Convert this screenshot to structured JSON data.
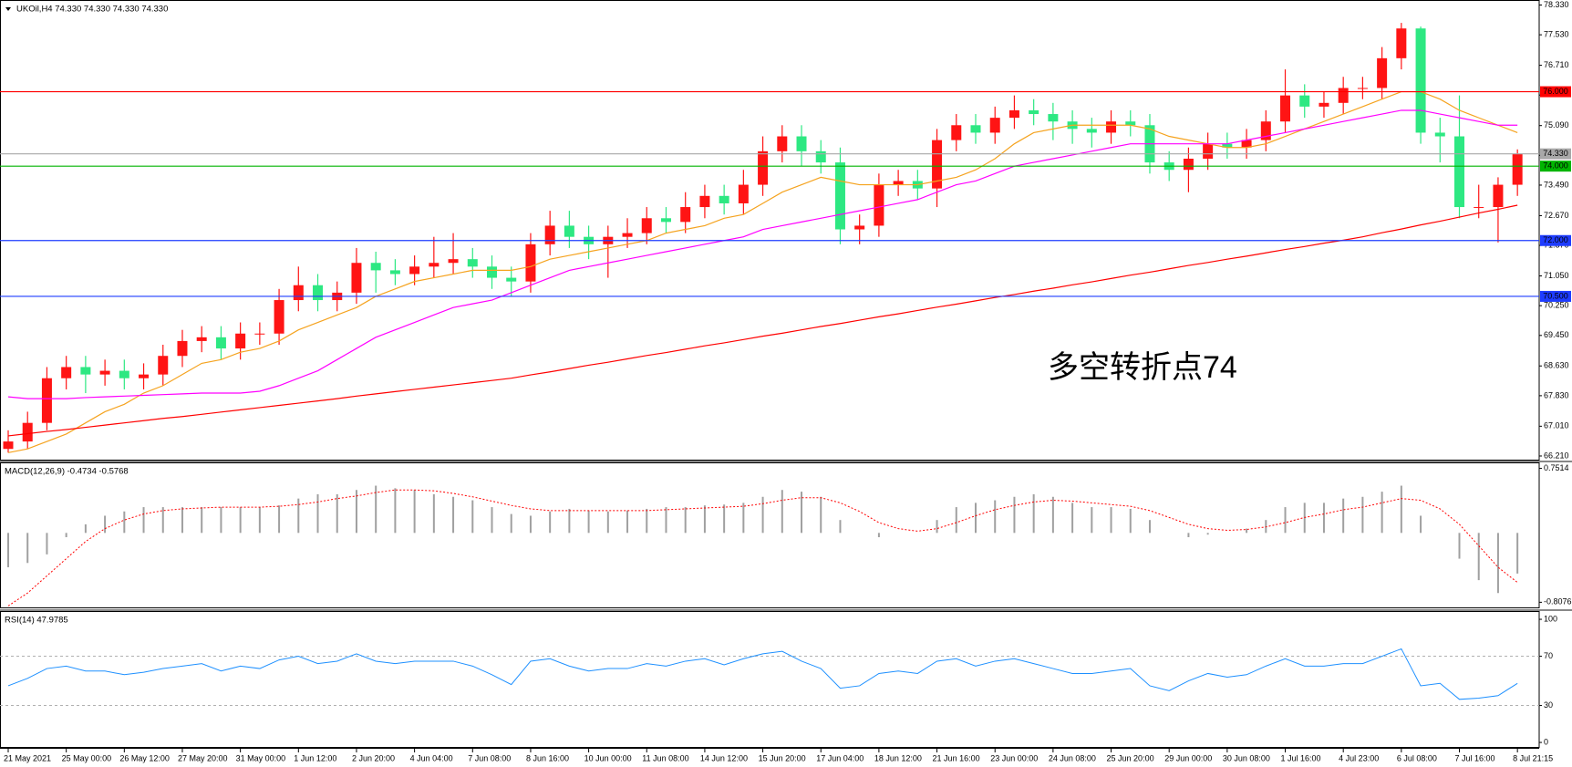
{
  "chart_data": [
    {
      "type": "candlestick",
      "title": "UKOil,H4  74.330 74.330 74.330 74.330",
      "categories": [
        "21 May 2021",
        null,
        null,
        "25 May 00:00",
        null,
        null,
        "26 May 12:00",
        null,
        null,
        "27 May 20:00",
        null,
        null,
        "31 May 00:00",
        null,
        null,
        "1 Jun 12:00",
        null,
        null,
        "2 Jun 20:00",
        null,
        null,
        "4 Jun 04:00",
        null,
        null,
        "7 Jun 08:00",
        null,
        null,
        "8 Jun 16:00",
        null,
        null,
        "10 Jun 00:00",
        null,
        null,
        "11 Jun 08:00",
        null,
        null,
        "14 Jun 12:00",
        null,
        null,
        "15 Jun 20:00",
        null,
        null,
        "17 Jun 04:00",
        null,
        null,
        "18 Jun 12:00",
        null,
        null,
        "21 Jun 16:00",
        null,
        null,
        "23 Jun 00:00",
        null,
        null,
        "24 Jun 08:00",
        null,
        null,
        "25 Jun 20:00",
        null,
        null,
        "29 Jun 00:00",
        null,
        null,
        "30 Jun 08:00",
        null,
        null,
        "1 Jul 16:00",
        null,
        null,
        "4 Jul 23:00",
        null,
        null,
        "6 Jul 08:00",
        null,
        null,
        "7 Jul 16:00",
        null,
        null,
        "8 Jul 21:15"
      ],
      "open": [
        66.4,
        66.6,
        67.1,
        68.3,
        68.6,
        68.4,
        68.5,
        68.3,
        68.4,
        68.9,
        69.3,
        69.4,
        69.1,
        69.5,
        69.5,
        70.4,
        70.8,
        70.4,
        70.6,
        71.4,
        71.2,
        71.1,
        71.3,
        71.4,
        71.5,
        71.3,
        71.0,
        70.9,
        71.9,
        72.4,
        72.1,
        71.9,
        72.1,
        72.2,
        72.6,
        72.5,
        72.9,
        73.2,
        73.0,
        73.5,
        74.4,
        74.8,
        74.4,
        74.1,
        72.3,
        72.4,
        73.5,
        73.6,
        73.4,
        74.7,
        75.1,
        74.9,
        75.3,
        75.5,
        75.4,
        75.2,
        75.0,
        74.9,
        75.2,
        75.1,
        74.1,
        73.9,
        74.2,
        74.6,
        74.5,
        74.7,
        75.2,
        75.9,
        75.6,
        75.7,
        76.1,
        76.1,
        76.9,
        77.7,
        74.9,
        74.8,
        72.9,
        72.9,
        73.5
      ],
      "high": [
        66.9,
        67.4,
        68.6,
        68.9,
        68.9,
        68.8,
        68.8,
        68.7,
        69.2,
        69.6,
        69.7,
        69.7,
        69.8,
        69.8,
        70.7,
        71.3,
        71.1,
        70.9,
        71.8,
        71.7,
        71.5,
        71.6,
        72.1,
        72.2,
        71.8,
        71.6,
        71.3,
        72.2,
        72.8,
        72.8,
        72.4,
        72.4,
        72.6,
        72.9,
        72.9,
        73.3,
        73.5,
        73.5,
        73.9,
        74.8,
        75.1,
        75.1,
        74.7,
        74.5,
        72.7,
        73.8,
        73.9,
        73.9,
        75.0,
        75.4,
        75.4,
        75.6,
        75.9,
        75.8,
        75.7,
        75.5,
        75.3,
        75.5,
        75.5,
        75.4,
        74.4,
        74.5,
        74.9,
        74.9,
        75.0,
        75.5,
        76.6,
        76.2,
        76.0,
        76.4,
        76.4,
        77.2,
        77.85,
        77.75,
        75.3,
        75.9,
        73.5,
        73.7,
        74.45
      ],
      "low": [
        66.3,
        66.4,
        66.9,
        68.0,
        67.9,
        68.1,
        68.0,
        68.0,
        68.1,
        68.6,
        69.0,
        68.8,
        68.8,
        69.2,
        69.2,
        70.1,
        70.1,
        70.1,
        70.3,
        70.6,
        70.8,
        70.8,
        71.0,
        71.1,
        71.0,
        70.7,
        70.5,
        70.6,
        71.6,
        71.8,
        71.5,
        71.0,
        71.8,
        71.9,
        72.2,
        72.2,
        72.6,
        72.7,
        72.7,
        73.2,
        74.1,
        74.0,
        73.8,
        71.9,
        71.9,
        72.1,
        73.2,
        73.1,
        72.9,
        74.4,
        74.6,
        74.6,
        75.0,
        75.1,
        74.7,
        74.6,
        74.5,
        74.6,
        74.8,
        73.8,
        73.6,
        73.3,
        73.9,
        74.2,
        74.2,
        74.4,
        74.9,
        75.3,
        75.3,
        75.4,
        75.8,
        75.8,
        76.6,
        74.6,
        74.1,
        72.6,
        72.6,
        71.95,
        73.2
      ],
      "close": [
        66.6,
        67.1,
        68.3,
        68.6,
        68.4,
        68.5,
        68.3,
        68.4,
        68.9,
        69.3,
        69.4,
        69.1,
        69.5,
        69.5,
        70.4,
        70.8,
        70.4,
        70.6,
        71.4,
        71.2,
        71.1,
        71.3,
        71.4,
        71.5,
        71.3,
        71.0,
        70.9,
        71.9,
        72.4,
        72.1,
        71.9,
        72.1,
        72.2,
        72.6,
        72.5,
        72.9,
        73.2,
        73.0,
        73.5,
        74.4,
        74.8,
        74.4,
        74.1,
        72.3,
        72.4,
        73.5,
        73.6,
        73.4,
        74.7,
        75.1,
        74.9,
        75.3,
        75.5,
        75.4,
        75.2,
        75.0,
        74.9,
        75.2,
        75.1,
        74.1,
        73.9,
        74.2,
        74.6,
        74.5,
        74.7,
        75.2,
        75.9,
        75.6,
        75.7,
        76.1,
        76.1,
        76.9,
        77.7,
        74.9,
        74.8,
        72.9,
        72.9,
        73.5,
        74.33
      ],
      "up_color": "#ff1414",
      "down_color": "#2de882",
      "series": [
        {
          "color": "#f5a31f",
          "values": [
            66.3,
            66.4,
            66.6,
            66.8,
            67.1,
            67.4,
            67.6,
            67.9,
            68.1,
            68.4,
            68.7,
            68.8,
            69.0,
            69.1,
            69.3,
            69.6,
            69.8,
            70.0,
            70.2,
            70.5,
            70.7,
            70.9,
            71.0,
            71.1,
            71.2,
            71.2,
            71.2,
            71.3,
            71.5,
            71.6,
            71.7,
            71.8,
            71.9,
            72.0,
            72.2,
            72.3,
            72.4,
            72.6,
            72.7,
            73.0,
            73.3,
            73.5,
            73.7,
            73.6,
            73.5,
            73.5,
            73.5,
            73.5,
            73.6,
            73.7,
            73.9,
            74.2,
            74.6,
            74.9,
            75.0,
            75.1,
            75.1,
            75.1,
            75.1,
            75.0,
            74.8,
            74.7,
            74.6,
            74.5,
            74.5,
            74.6,
            74.8,
            75.0,
            75.2,
            75.4,
            75.6,
            75.8,
            76.0,
            76.0,
            75.8,
            75.5,
            75.3,
            75.1,
            74.9
          ]
        },
        {
          "color": "#ff00ff",
          "values": [
            67.8,
            67.75,
            67.75,
            67.75,
            67.78,
            67.8,
            67.82,
            67.84,
            67.86,
            67.88,
            67.9,
            67.9,
            67.9,
            67.95,
            68.1,
            68.3,
            68.5,
            68.8,
            69.1,
            69.4,
            69.6,
            69.8,
            70.0,
            70.2,
            70.3,
            70.4,
            70.6,
            70.8,
            71.0,
            71.2,
            71.3,
            71.4,
            71.5,
            71.6,
            71.7,
            71.8,
            71.9,
            72.0,
            72.1,
            72.3,
            72.4,
            72.5,
            72.6,
            72.7,
            72.8,
            72.9,
            73.0,
            73.1,
            73.3,
            73.5,
            73.6,
            73.8,
            74.0,
            74.1,
            74.2,
            74.3,
            74.4,
            74.5,
            74.6,
            74.6,
            74.6,
            74.6,
            74.6,
            74.6,
            74.7,
            74.8,
            74.9,
            75.0,
            75.1,
            75.2,
            75.3,
            75.4,
            75.5,
            75.5,
            75.4,
            75.3,
            75.2,
            75.1,
            75.1
          ]
        },
        {
          "color": "#ff0000",
          "values": [
            66.75,
            66.81,
            66.87,
            66.92,
            66.98,
            67.04,
            67.1,
            67.16,
            67.22,
            67.27,
            67.33,
            67.39,
            67.45,
            67.51,
            67.57,
            67.63,
            67.69,
            67.75,
            67.82,
            67.88,
            67.94,
            68.0,
            68.06,
            68.12,
            68.18,
            68.24,
            68.3,
            68.39,
            68.47,
            68.56,
            68.65,
            68.73,
            68.82,
            68.91,
            68.99,
            69.08,
            69.17,
            69.25,
            69.34,
            69.43,
            69.51,
            69.6,
            69.69,
            69.77,
            69.86,
            69.95,
            70.03,
            70.12,
            70.21,
            70.29,
            70.38,
            70.47,
            70.55,
            70.64,
            70.72,
            70.81,
            70.89,
            70.98,
            71.07,
            71.15,
            71.24,
            71.33,
            71.41,
            71.5,
            71.58,
            71.67,
            71.76,
            71.84,
            71.93,
            72.01,
            72.1,
            72.21,
            72.31,
            72.42,
            72.52,
            72.63,
            72.74,
            72.84,
            72.95
          ]
        }
      ],
      "hlines": [
        {
          "value": 76,
          "label": "76.000",
          "color": "#ff0000",
          "label_color": "#ffffff"
        },
        {
          "value": 74.33,
          "label": "74.330",
          "color": "#a8a8a8",
          "label_color": "#000000"
        },
        {
          "value": 74,
          "label": "74.000",
          "color": "#00b400",
          "label_color": "#ffffff"
        },
        {
          "value": 72,
          "label": "72.000",
          "color": "#1e3cff",
          "label_color": "#ffffff"
        },
        {
          "value": 70.5,
          "label": "70.500",
          "color": "#1e3cff",
          "label_color": "#ffffff"
        }
      ],
      "annotation": {
        "text": "多空转折点74",
        "color": "#e8332a"
      },
      "ylim": [
        66.087,
        78.465
      ],
      "yticks": [
        {
          "value": 78.33,
          "label": "78.330"
        },
        {
          "value": 77.53,
          "label": "77.530"
        },
        {
          "value": 76.71,
          "label": "76.710"
        },
        {
          "value": 75.91,
          "label": "75.910"
        },
        {
          "value": 75.09,
          "label": "75.090"
        },
        {
          "value": 74.29,
          "label": "74.290"
        },
        {
          "value": 73.49,
          "label": "73.490"
        },
        {
          "value": 72.67,
          "label": "72.670"
        },
        {
          "value": 71.87,
          "label": "71.870"
        },
        {
          "value": 71.05,
          "label": "71.050"
        },
        {
          "value": 70.25,
          "label": "70.250"
        },
        {
          "value": 69.45,
          "label": "69.450"
        },
        {
          "value": 68.63,
          "label": "68.630"
        },
        {
          "value": 67.83,
          "label": "67.830"
        },
        {
          "value": 67.01,
          "label": "67.010"
        },
        {
          "value": 66.21,
          "label": "66.210"
        }
      ]
    },
    {
      "type": "macd",
      "title": "MACD(12,26,9) -0.4734 -0.5768",
      "values": [
        -0.4,
        -0.35,
        -0.25,
        -0.05,
        0.1,
        0.2,
        0.25,
        0.3,
        0.3,
        0.3,
        0.3,
        0.3,
        0.3,
        0.3,
        0.32,
        0.4,
        0.45,
        0.45,
        0.5,
        0.55,
        0.52,
        0.5,
        0.45,
        0.42,
        0.38,
        0.3,
        0.22,
        0.2,
        0.25,
        0.28,
        0.26,
        0.25,
        0.26,
        0.28,
        0.3,
        0.3,
        0.32,
        0.33,
        0.35,
        0.42,
        0.5,
        0.48,
        0.42,
        0.15,
        0.0,
        -0.05,
        0.0,
        0.0,
        0.15,
        0.3,
        0.35,
        0.38,
        0.42,
        0.45,
        0.42,
        0.35,
        0.3,
        0.3,
        0.28,
        0.15,
        0.0,
        -0.05,
        -0.02,
        0.0,
        0.05,
        0.15,
        0.3,
        0.35,
        0.35,
        0.4,
        0.42,
        0.48,
        0.55,
        0.2,
        0.0,
        -0.3,
        -0.55,
        -0.7,
        -0.4734
      ],
      "color": "#a0a0a0",
      "signal_values": [
        -0.85,
        -0.7,
        -0.5,
        -0.3,
        -0.1,
        0.05,
        0.15,
        0.22,
        0.26,
        0.28,
        0.29,
        0.3,
        0.3,
        0.3,
        0.31,
        0.33,
        0.36,
        0.4,
        0.43,
        0.47,
        0.5,
        0.5,
        0.49,
        0.46,
        0.42,
        0.37,
        0.32,
        0.28,
        0.26,
        0.26,
        0.26,
        0.26,
        0.26,
        0.26,
        0.27,
        0.28,
        0.29,
        0.3,
        0.31,
        0.34,
        0.38,
        0.41,
        0.41,
        0.35,
        0.25,
        0.12,
        0.05,
        0.02,
        0.05,
        0.12,
        0.2,
        0.27,
        0.32,
        0.36,
        0.38,
        0.37,
        0.35,
        0.33,
        0.31,
        0.26,
        0.18,
        0.1,
        0.05,
        0.03,
        0.04,
        0.07,
        0.12,
        0.18,
        0.22,
        0.27,
        0.3,
        0.35,
        0.4,
        0.38,
        0.28,
        0.1,
        -0.15,
        -0.4,
        -0.5768
      ],
      "signal_color": "#ff0000",
      "ylim": [
        -0.878,
        0.821
      ],
      "yticks": [
        0.7514,
        -0.8076
      ]
    },
    {
      "type": "line",
      "title": "RSI(14) 47.9785",
      "values": [
        46,
        52,
        60,
        62,
        58,
        58,
        55,
        57,
        60,
        62,
        64,
        58,
        62,
        60,
        67,
        70,
        64,
        66,
        72,
        66,
        64,
        66,
        66,
        66,
        62,
        55,
        47,
        66,
        68,
        62,
        58,
        60,
        60,
        64,
        62,
        66,
        68,
        63,
        68,
        72,
        74,
        66,
        60,
        44,
        46,
        56,
        58,
        56,
        66,
        68,
        62,
        66,
        68,
        64,
        60,
        56,
        56,
        58,
        60,
        46,
        42,
        50,
        56,
        53,
        55,
        62,
        68,
        62,
        62,
        64,
        64,
        70,
        76,
        46,
        48,
        35,
        36,
        38,
        47.9785
      ],
      "color": "#1e90ff",
      "ylim": [
        -4.4,
        106.7
      ],
      "yticks": [
        100,
        70,
        30,
        0
      ]
    }
  ]
}
